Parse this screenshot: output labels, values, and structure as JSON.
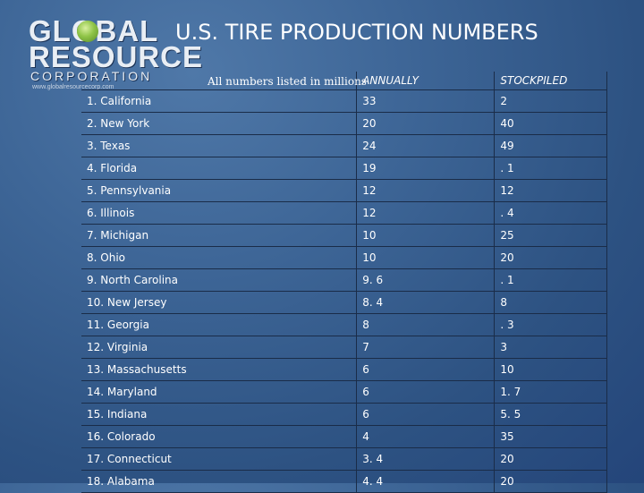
{
  "logo": {
    "line1": "GLOBAL",
    "line2": "RESOURCE",
    "line3": "CORPORATION",
    "url": "www.globalresourcecorp.com"
  },
  "title": "U.S. TIRE PRODUCTION NUMBERS",
  "note": "All numbers listed in millions",
  "columns": {
    "annually": "ANNUALLY",
    "stockpiled": "STOCKPILED"
  },
  "rows": [
    {
      "state": "1. California",
      "annually": "33",
      "stockpiled": "2"
    },
    {
      "state": "2. New York",
      "annually": "20",
      "stockpiled": "40"
    },
    {
      "state": "3. Texas",
      "annually": "24",
      "stockpiled": "49"
    },
    {
      "state": "4. Florida",
      "annually": "19",
      "stockpiled": ". 1"
    },
    {
      "state": "5. Pennsylvania",
      "annually": "12",
      "stockpiled": "12"
    },
    {
      "state": "6. Illinois",
      "annually": "12",
      "stockpiled": ". 4"
    },
    {
      "state": "7. Michigan",
      "annually": "10",
      "stockpiled": "25"
    },
    {
      "state": "8. Ohio",
      "annually": "10",
      "stockpiled": "20"
    },
    {
      "state": "9. North Carolina",
      "annually": "9. 6",
      "stockpiled": ". 1"
    },
    {
      "state": "10. New Jersey",
      "annually": "8. 4",
      "stockpiled": "8"
    },
    {
      "state": "11. Georgia",
      "annually": "8",
      "stockpiled": ". 3"
    },
    {
      "state": "12. Virginia",
      "annually": "7",
      "stockpiled": "3"
    },
    {
      "state": "13. Massachusetts",
      "annually": "6",
      "stockpiled": "10"
    },
    {
      "state": "14. Maryland",
      "annually": "6",
      "stockpiled": "1. 7"
    },
    {
      "state": "15. Indiana",
      "annually": "6",
      "stockpiled": "5. 5"
    },
    {
      "state": "16. Colorado",
      "annually": "4",
      "stockpiled": "35"
    },
    {
      "state": "17. Connecticut",
      "annually": "3. 4",
      "stockpiled": "20"
    },
    {
      "state": "18. Alabama",
      "annually": "4. 4",
      "stockpiled": "20"
    }
  ]
}
